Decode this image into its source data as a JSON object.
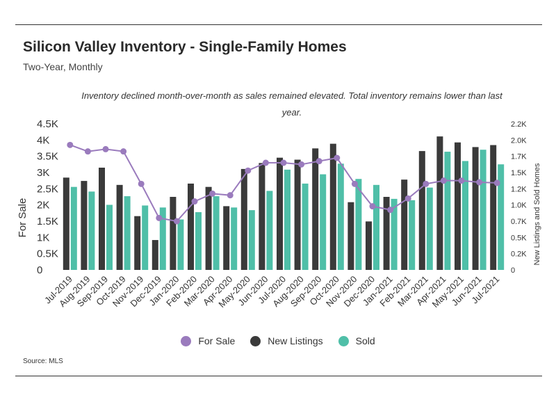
{
  "header": {
    "title": "Silicon Valley Inventory - Single-Family Homes",
    "subtitle": "Two-Year, Monthly",
    "annotation": "Inventory declined month-over-month as sales remained elevated. Total inventory remains lower than last year."
  },
  "footer": {
    "source": "Source:  MLS"
  },
  "colors": {
    "for_sale": "#9a7bbd",
    "new_listings": "#3a3a3a",
    "sold": "#4fbfa8"
  },
  "chart_data": {
    "type": "bar",
    "categories": [
      "Jul-2019",
      "Aug-2019",
      "Sep-2019",
      "Oct-2019",
      "Nov-2019",
      "Dec-2019",
      "Jan-2020",
      "Feb-2020",
      "Mar-2020",
      "Apr-2020",
      "May-2020",
      "Jun-2020",
      "Jul-2020",
      "Aug-2020",
      "Sep-2020",
      "Oct-2020",
      "Nov-2020",
      "Dec-2020",
      "Jan-2021",
      "Feb-2021",
      "Mar-2021",
      "Apr-2021",
      "May-2021",
      "Jun-2021",
      "Jul-2021"
    ],
    "series": [
      {
        "name": "For Sale",
        "type": "line",
        "axis": "left",
        "values": [
          3850,
          3650,
          3720,
          3650,
          2650,
          1600,
          1500,
          2110,
          2350,
          2300,
          3060,
          3300,
          3300,
          3250,
          3350,
          3450,
          2650,
          1960,
          1850,
          2200,
          2650,
          2750,
          2750,
          2700,
          2680
        ]
      },
      {
        "name": "New Listings",
        "type": "bar",
        "axis": "right",
        "values": [
          1390,
          1340,
          1540,
          1280,
          810,
          450,
          1100,
          1300,
          1250,
          960,
          1520,
          1610,
          1690,
          1660,
          1830,
          1900,
          1020,
          730,
          1100,
          1360,
          1790,
          2010,
          1920,
          1850,
          1880
        ]
      },
      {
        "name": "Sold",
        "type": "bar",
        "axis": "right",
        "values": [
          1250,
          1180,
          980,
          1110,
          970,
          940,
          760,
          870,
          1110,
          940,
          900,
          1190,
          1510,
          1300,
          1440,
          1600,
          1370,
          1280,
          1070,
          1050,
          1240,
          1780,
          1640,
          1810,
          1590
        ]
      }
    ],
    "ylabel": "For Sale",
    "y2label": "New Listings and Sold Homes",
    "ylim": [
      0,
      4500
    ],
    "y2lim": [
      0,
      2200
    ],
    "yticks": [
      "0",
      "0.5K",
      "1K",
      "1.5K",
      "2K",
      "2.5K",
      "3K",
      "3.5K",
      "4K",
      "4.5K"
    ],
    "y2ticks": [
      "0",
      "0.2K",
      "0.5K",
      "0.7K",
      "1.0K",
      "1.2K",
      "1.5K",
      "1.7K",
      "2.0K",
      "2.2K"
    ],
    "grid": false,
    "legend": "bottom"
  }
}
